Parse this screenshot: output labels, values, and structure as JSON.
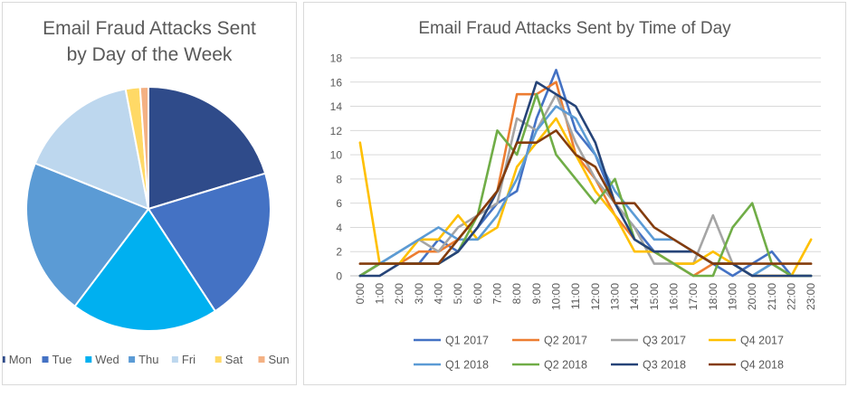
{
  "chart_data": [
    {
      "type": "pie",
      "title_line1": "Email Fraud Attacks Sent",
      "title_line2": "by Day of the Week",
      "legend_position": "bottom",
      "categories": [
        "Mon",
        "Tue",
        "Wed",
        "Thu",
        "Fri",
        "Sat",
        "Sun"
      ],
      "values": [
        20.3,
        20.5,
        19.5,
        20.8,
        15.9,
        1.9,
        1.1
      ],
      "colors": [
        "#2F4B8A",
        "#4472C4",
        "#00B0F0",
        "#5B9BD5",
        "#BDD7EE",
        "#FFD966",
        "#F4B183"
      ]
    },
    {
      "type": "line",
      "title": "Email Fraud Attacks Sent by Time of Day",
      "xlabel": "",
      "ylabel": "",
      "legend_position": "bottom",
      "grid": true,
      "ylim": [
        0,
        18
      ],
      "yticks": [
        0,
        2,
        4,
        6,
        8,
        10,
        12,
        14,
        16,
        18
      ],
      "x": [
        "0:00",
        "1:00",
        "2:00",
        "3:00",
        "4:00",
        "5:00",
        "6:00",
        "7:00",
        "8:00",
        "9:00",
        "10:00",
        "11:00",
        "12:00",
        "13:00",
        "14:00",
        "15:00",
        "16:00",
        "17:00",
        "18:00",
        "19:00",
        "20:00",
        "21:00",
        "22:00",
        "23:00"
      ],
      "series": [
        {
          "name": "Q1 2017",
          "color": "#4472C4",
          "values": [
            0,
            1,
            1,
            1,
            3,
            2,
            4,
            6,
            7,
            13,
            17,
            12,
            10,
            6,
            4,
            2,
            2,
            2,
            1,
            0,
            1,
            2,
            0,
            0
          ]
        },
        {
          "name": "Q2 2017",
          "color": "#ED7D31",
          "values": [
            0,
            1,
            1,
            2,
            2,
            3,
            5,
            7,
            15,
            15,
            16,
            10,
            8,
            5,
            3,
            2,
            1,
            0,
            1,
            1,
            0,
            0,
            0,
            0
          ]
        },
        {
          "name": "Q3 2017",
          "color": "#A5A5A5",
          "values": [
            0,
            1,
            2,
            3,
            2,
            4,
            5,
            6,
            13,
            12,
            15,
            11,
            8,
            6,
            4,
            1,
            1,
            1,
            5,
            1,
            0,
            1,
            0,
            0
          ]
        },
        {
          "name": "Q4 2017",
          "color": "#FFC000",
          "values": [
            11,
            1,
            1,
            3,
            3,
            5,
            3,
            4,
            9,
            11,
            13,
            10,
            7,
            5,
            2,
            2,
            1,
            1,
            2,
            1,
            0,
            0,
            0,
            3
          ]
        },
        {
          "name": "Q1 2018",
          "color": "#5B9BD5",
          "values": [
            0,
            1,
            2,
            3,
            4,
            3,
            3,
            5,
            8,
            12,
            14,
            13,
            10,
            7,
            5,
            3,
            3,
            2,
            1,
            1,
            0,
            1,
            0,
            0
          ]
        },
        {
          "name": "Q2 2018",
          "color": "#70AD47",
          "values": [
            0,
            1,
            1,
            1,
            1,
            2,
            5,
            12,
            10,
            15,
            10,
            8,
            6,
            8,
            3,
            2,
            1,
            0,
            0,
            4,
            6,
            1,
            0,
            0
          ]
        },
        {
          "name": "Q3 2018",
          "color": "#264478",
          "values": [
            0,
            0,
            1,
            1,
            1,
            2,
            4,
            7,
            11,
            16,
            15,
            14,
            11,
            6,
            3,
            2,
            2,
            2,
            1,
            1,
            0,
            0,
            0,
            0
          ]
        },
        {
          "name": "Q4 2018",
          "color": "#843C0C",
          "values": [
            1,
            1,
            1,
            1,
            1,
            3,
            5,
            7,
            11,
            11,
            12,
            10,
            9,
            6,
            6,
            4,
            3,
            2,
            1,
            1,
            1,
            1,
            1,
            1
          ]
        }
      ]
    }
  ]
}
